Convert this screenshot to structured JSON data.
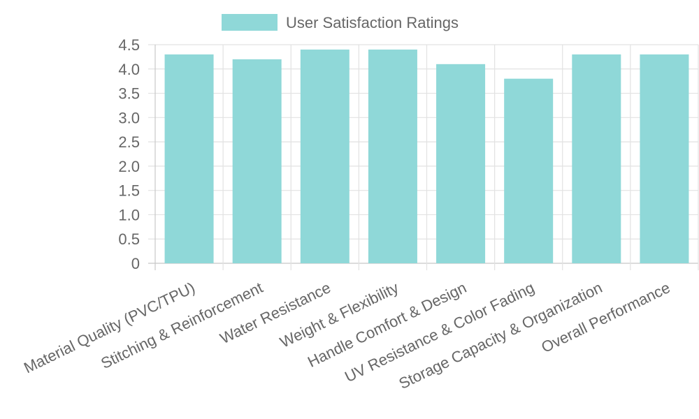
{
  "chart_data": {
    "type": "bar",
    "categories": [
      "Material Quality (PVC/TPU)",
      "Stitching & Reinforcement",
      "Water Resistance",
      "Weight & Flexibility",
      "Handle Comfort & Design",
      "UV Resistance & Color Fading",
      "Storage Capacity & Organization",
      "Overall Performance"
    ],
    "series": [
      {
        "name": "User Satisfaction Ratings",
        "values": [
          4.3,
          4.2,
          4.4,
          4.4,
          4.1,
          3.8,
          4.3,
          4.3
        ],
        "color": "#8fd8d8"
      }
    ],
    "y_ticks": [
      "0",
      "0.5",
      "1.0",
      "1.5",
      "2.0",
      "2.5",
      "3.0",
      "3.5",
      "4.0",
      "4.5"
    ],
    "ylim": [
      0,
      4.5
    ],
    "grid": true,
    "legend_position": "top-center"
  }
}
